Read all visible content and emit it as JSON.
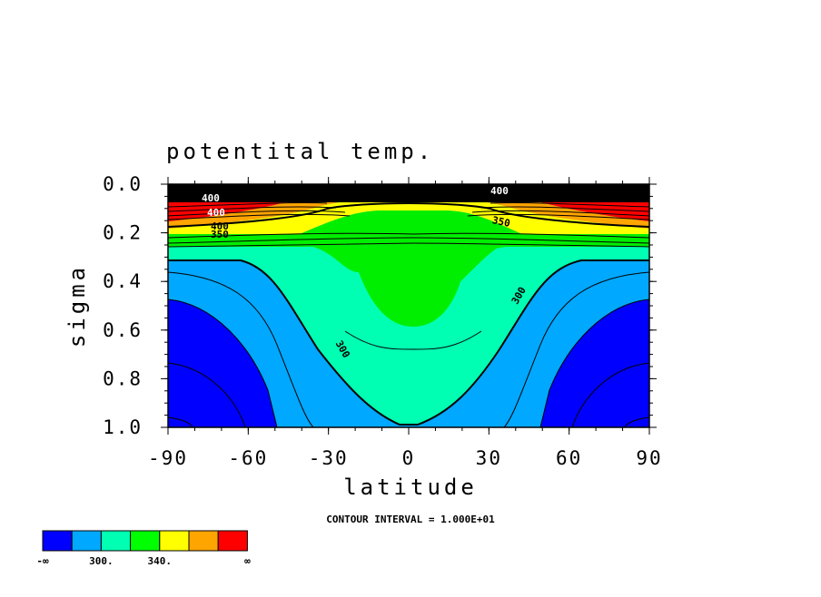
{
  "chart_data": {
    "type": "contour",
    "title": "potentital temp.",
    "xlabel": "latitude",
    "ylabel": "sigma",
    "xlim": [
      -90,
      90
    ],
    "ylim": [
      0.0,
      1.0
    ],
    "y_inverted": true,
    "x_ticks": [
      "-90",
      "-60",
      "-30",
      "0",
      "30",
      "60",
      "90"
    ],
    "y_ticks": [
      "0.0",
      "0.2",
      "0.4",
      "0.6",
      "0.8",
      "1.0"
    ],
    "contour_interval_text": "CONTOUR INTERVAL = 1.000E+01",
    "contour_labels": [
      "300",
      "300",
      "350",
      "400",
      "400",
      "400",
      "350",
      "400"
    ],
    "colorbar": {
      "colors": [
        "#0000ff",
        "#00a8ff",
        "#00ffb3",
        "#00ff00",
        "#ffff00",
        "#ffa500",
        "#ff0000"
      ],
      "labels": [
        "-∞",
        "300.",
        "340.",
        "∞"
      ]
    }
  }
}
